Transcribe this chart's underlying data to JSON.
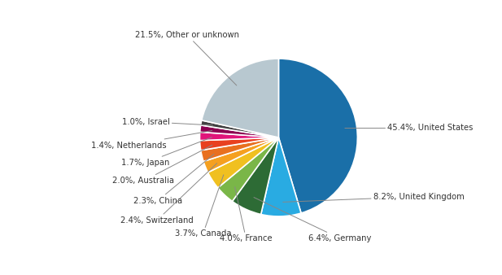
{
  "slices": [
    {
      "label": "United States",
      "value": 45.4,
      "color": "#1a6fa8"
    },
    {
      "label": "United Kingdom",
      "value": 8.2,
      "color": "#29abe2"
    },
    {
      "label": "Germany",
      "value": 6.4,
      "color": "#2d6b35"
    },
    {
      "label": "France",
      "value": 4.0,
      "color": "#7ab648"
    },
    {
      "label": "Canada",
      "value": 3.7,
      "color": "#f0c020"
    },
    {
      "label": "Switzerland",
      "value": 2.4,
      "color": "#f5a020"
    },
    {
      "label": "China",
      "value": 2.3,
      "color": "#e87020"
    },
    {
      "label": "Australia",
      "value": 2.0,
      "color": "#e84020"
    },
    {
      "label": "Japan",
      "value": 1.7,
      "color": "#e0157a"
    },
    {
      "label": "Netherlands",
      "value": 1.4,
      "color": "#8b0050"
    },
    {
      "label": "Israel",
      "value": 1.0,
      "color": "#404040"
    },
    {
      "label": "Other or unknown",
      "value": 21.5,
      "color": "#b8c8d0"
    }
  ],
  "startangle": 90,
  "background_color": "#ffffff",
  "label_positions": {
    "United States": [
      1.38,
      0.12,
      "left"
    ],
    "United Kingdom": [
      1.2,
      -0.75,
      "left"
    ],
    "Germany": [
      0.38,
      -1.28,
      "left"
    ],
    "France": [
      -0.08,
      -1.28,
      "right"
    ],
    "Canada": [
      -0.6,
      -1.22,
      "right"
    ],
    "Switzerland": [
      -1.08,
      -1.05,
      "right"
    ],
    "China": [
      -1.22,
      -0.8,
      "right"
    ],
    "Australia": [
      -1.32,
      -0.55,
      "right"
    ],
    "Japan": [
      -1.38,
      -0.32,
      "right"
    ],
    "Netherlands": [
      -1.42,
      -0.1,
      "right"
    ],
    "Israel": [
      -1.38,
      0.2,
      "right"
    ],
    "Other or unknown": [
      -0.5,
      1.3,
      "right"
    ]
  }
}
